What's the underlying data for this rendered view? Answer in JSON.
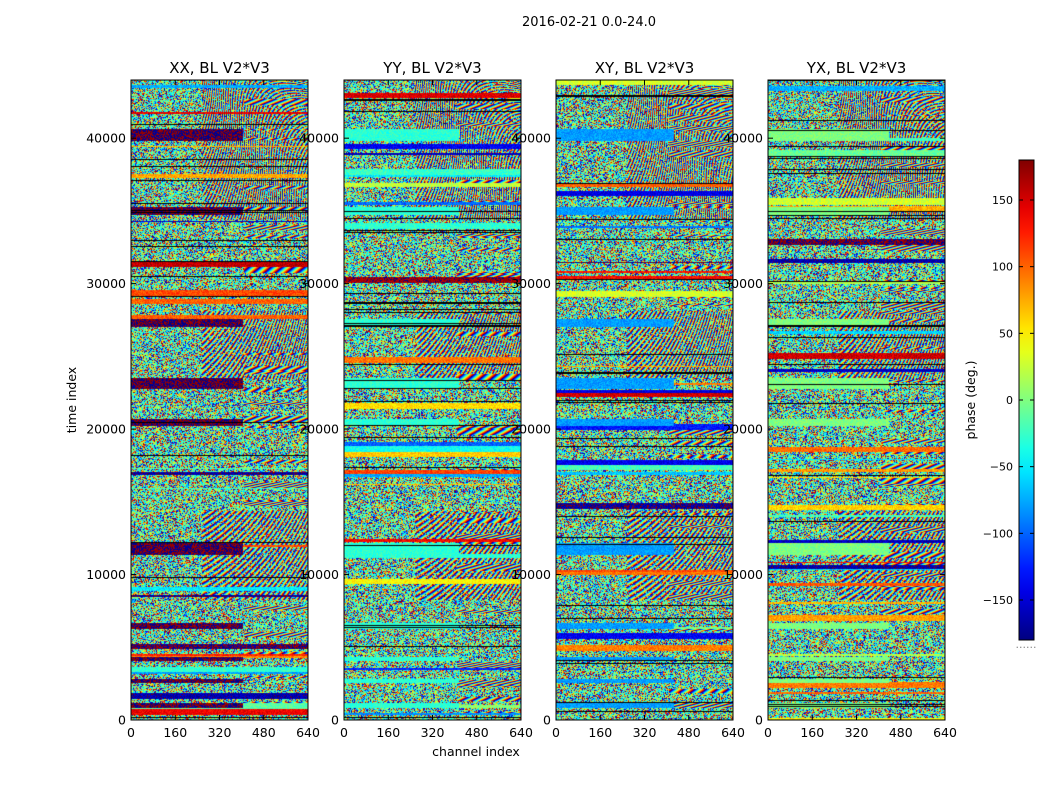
{
  "figure": {
    "suptitle": "2016-02-21 0.0-24.0",
    "xlabel": "channel index",
    "ylabel": "time index",
    "colorbar_label": "phase (deg.)",
    "colorbar_footer": "......"
  },
  "chart_data": {
    "type": "heatmap",
    "colormap": "jet",
    "panels": [
      {
        "title": "XX, BL V2*V3",
        "pol": "XX"
      },
      {
        "title": "YY, BL V2*V3",
        "pol": "YY"
      },
      {
        "title": "XY, BL V2*V3",
        "pol": "XY"
      },
      {
        "title": "YX, BL V2*V3",
        "pol": "YX"
      }
    ],
    "xlim": [
      0,
      640
    ],
    "ylim": [
      0,
      44000
    ],
    "xticks": [
      0,
      160,
      320,
      480,
      640
    ],
    "yticks": [
      0,
      10000,
      20000,
      30000,
      40000
    ],
    "xtick_labels": [
      "0",
      "160",
      "320",
      "480",
      "640"
    ],
    "ytick_labels": [
      "0",
      "10000",
      "20000",
      "30000",
      "40000"
    ],
    "colorbar_range": [
      -180,
      180
    ],
    "colorbar_ticks": [
      -150,
      -100,
      -50,
      0,
      50,
      100,
      150
    ],
    "colorbar_tick_labels": [
      "−150",
      "−100",
      "−50",
      "0",
      "50",
      "100",
      "150"
    ],
    "flagged_bands_time_index": [
      [
        900,
        1200
      ],
      [
        2600,
        2800
      ],
      [
        4100,
        4300
      ],
      [
        6300,
        6700
      ],
      [
        11400,
        12200
      ],
      [
        20300,
        20700
      ],
      [
        22800,
        23500
      ],
      [
        27100,
        27600
      ],
      [
        34800,
        35300
      ],
      [
        39900,
        40600
      ]
    ]
  }
}
